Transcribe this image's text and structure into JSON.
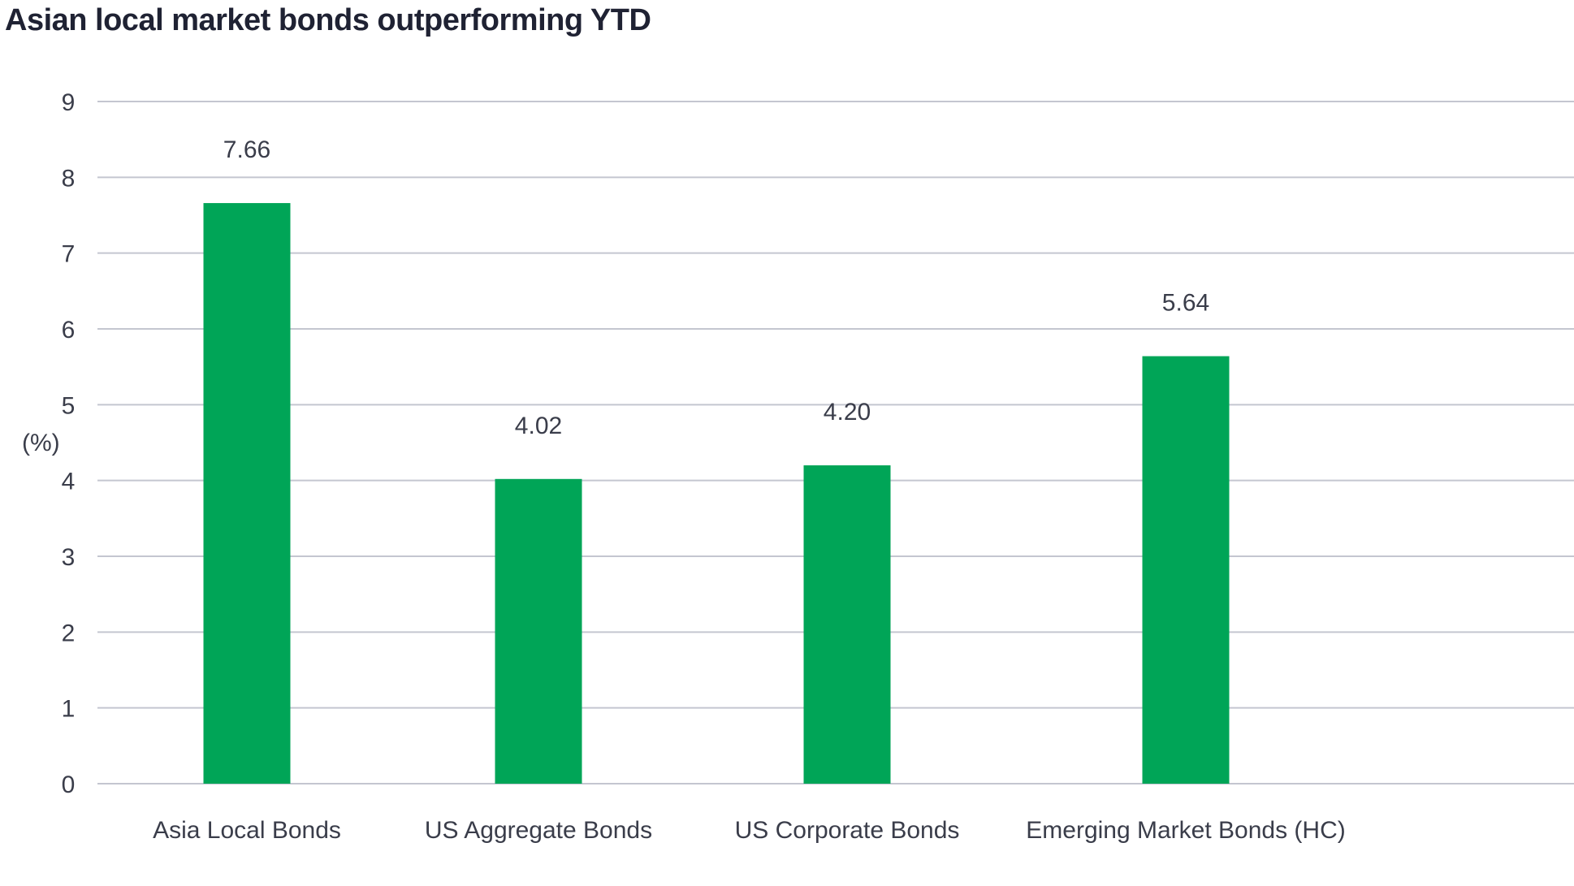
{
  "chart_data": {
    "type": "bar",
    "title": "Asian local market bonds outperforming YTD",
    "xlabel": "",
    "ylabel": "(%)",
    "categories": [
      "Asia Local Bonds",
      "US Aggregate Bonds",
      "US Corporate Bonds",
      "Emerging Market Bonds (HC)"
    ],
    "values": [
      7.66,
      4.02,
      4.2,
      5.64
    ],
    "data_labels": [
      "7.66",
      "4.02",
      "4.20",
      "5.64"
    ],
    "ylim": [
      0,
      9
    ],
    "yticks": [
      "0",
      "1",
      "2",
      "3",
      "4",
      "5",
      "6",
      "7",
      "8",
      "9"
    ],
    "grid": true,
    "legend": "none",
    "colors": {
      "bar": "#00a557",
      "grid": "#c4c6d0"
    }
  }
}
